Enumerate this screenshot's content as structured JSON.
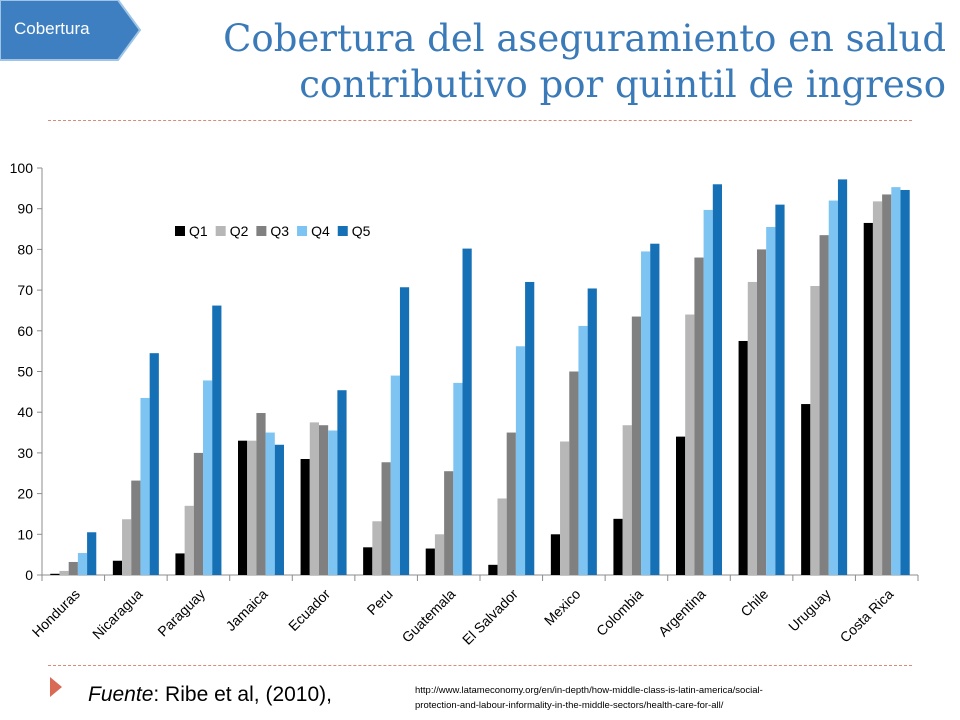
{
  "tag": {
    "label": "Cobertura",
    "color": "#3d7fc0"
  },
  "title": {
    "line1": "Cobertura del aseguramiento en salud",
    "line2": "contributivo por quintil de ingreso"
  },
  "source": {
    "prefix": "Fuente",
    "text": ": Ribe et al, (2010),",
    "url_line1": "http://www.latameconomy.org/en/in-depth/how-middle-class-is-latin-america/social-",
    "url_line2": "protection-and-labour-informality-in-the-middle-sectors/health-care-for-all/"
  },
  "chart_data": {
    "type": "bar",
    "title": "",
    "xlabel": "",
    "ylabel": "",
    "ylim": [
      0,
      100
    ],
    "yticks": [
      "0",
      "10",
      "20",
      "30",
      "40",
      "50",
      "60",
      "70",
      "80",
      "90",
      "100"
    ],
    "grid": false,
    "legend_position": "top-left",
    "categories": [
      "Honduras",
      "Nicaragua",
      "Paraguay",
      "Jamaica",
      "Ecuador",
      "Peru",
      "Guatemala",
      "El Salvador",
      "Mexico",
      "Colombia",
      "Argentina",
      "Chile",
      "Uruguay",
      "Costa Rica"
    ],
    "series": [
      {
        "name": "Q1",
        "color": "#000000",
        "values": [
          0.3,
          3.5,
          5.3,
          33,
          28.5,
          6.8,
          6.5,
          2.5,
          10,
          13.8,
          34,
          57.5,
          42,
          86.5
        ]
      },
      {
        "name": "Q2",
        "color": "#b7b7b7",
        "values": [
          1,
          13.7,
          17,
          33,
          37.5,
          13.2,
          10,
          18.8,
          32.8,
          36.8,
          64,
          72,
          71,
          91.8
        ]
      },
      {
        "name": "Q3",
        "color": "#808080",
        "values": [
          3.2,
          23.2,
          30,
          39.8,
          36.8,
          27.7,
          25.5,
          35,
          50,
          63.5,
          78,
          80,
          83.5,
          93.5
        ]
      },
      {
        "name": "Q4",
        "color": "#7dc4f2",
        "values": [
          5.4,
          43.5,
          47.8,
          35,
          35.5,
          49,
          47.2,
          56.2,
          61.2,
          79.5,
          89.7,
          85.5,
          92,
          95.3
        ]
      },
      {
        "name": "Q5",
        "color": "#1570b5",
        "values": [
          10.5,
          54.5,
          66.2,
          32,
          45.4,
          70.7,
          80.2,
          72,
          70.4,
          81.4,
          96,
          91,
          97.2,
          94.6
        ]
      }
    ]
  }
}
